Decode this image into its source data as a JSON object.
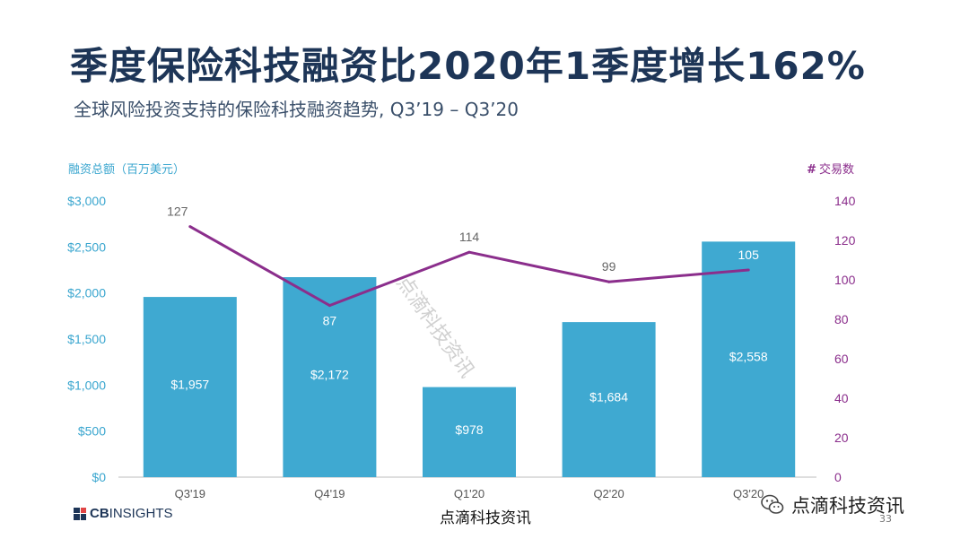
{
  "title": "季度保险科技融资比2020年1季度增长162%",
  "subtitle": "全球风险投资支持的保险科技融资趋势, Q3’19 – Q3’20",
  "left_axis_label": "融资总额（百万美元）",
  "right_axis_label_hash": "#",
  "right_axis_label_text": "交易数",
  "colors": {
    "bar": "#3fa9d1",
    "line": "#8b2e8c",
    "title": "#1d3557"
  },
  "chart_data": {
    "type": "bar",
    "categories": [
      "Q3'19",
      "Q4'19",
      "Q1'20",
      "Q2'20",
      "Q3'20"
    ],
    "series": [
      {
        "type": "bar",
        "axis": "left",
        "values": [
          1957,
          2172,
          978,
          1684,
          2558
        ],
        "labels": [
          "$1,957",
          "$2,172",
          "$978",
          "$1,684",
          "$2,558"
        ]
      },
      {
        "type": "line",
        "axis": "right",
        "values": [
          127,
          87,
          114,
          99,
          105
        ],
        "labels": [
          "127",
          "87",
          "114",
          "99",
          "105"
        ]
      }
    ],
    "left_ylim": [
      0,
      3000
    ],
    "left_ticks": [
      "$0",
      "$500",
      "$1,000",
      "$1,500",
      "$2,000",
      "$2,500",
      "$3,000"
    ],
    "right_ylim": [
      0,
      140
    ],
    "right_ticks": [
      "0",
      "20",
      "40",
      "60",
      "80",
      "100",
      "120",
      "140"
    ]
  },
  "footer": {
    "brand_cb": "CB",
    "brand_rest": "INSIGHTS",
    "watermark": "点滴科技资讯",
    "wechat_name": "点滴科技资讯",
    "page": "33"
  }
}
